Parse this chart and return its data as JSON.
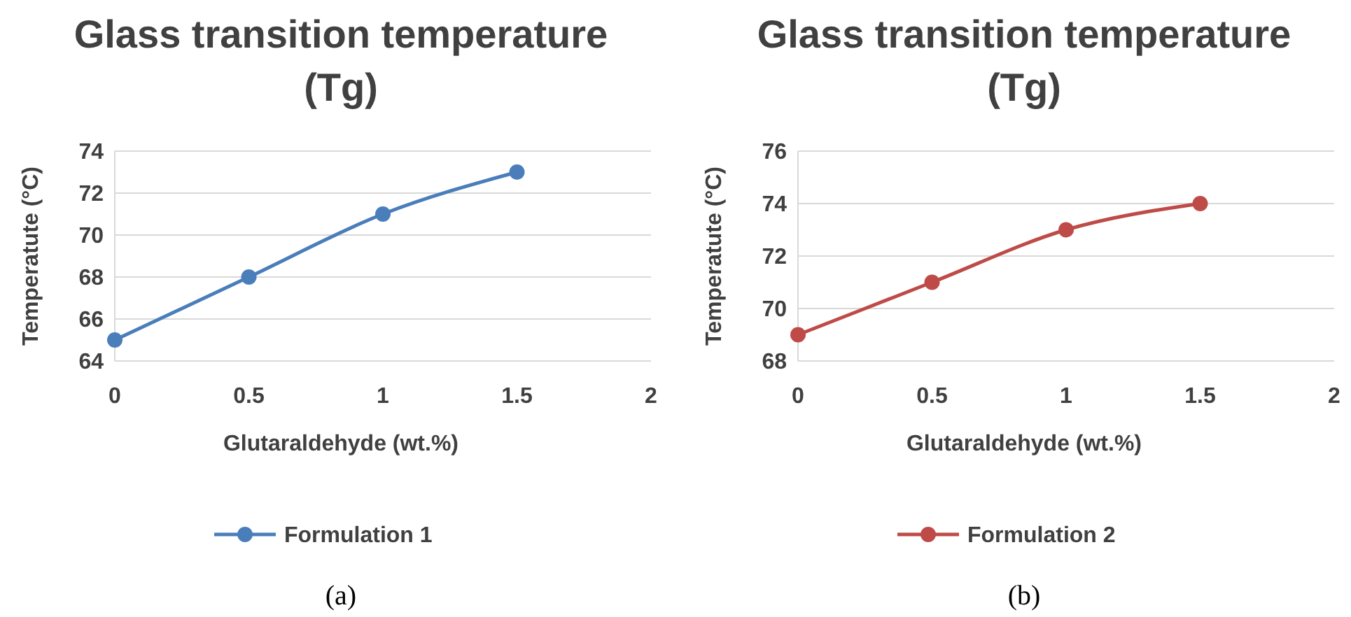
{
  "chart_data": [
    {
      "type": "line",
      "title": "Glass transition temperature (Tg)",
      "xlabel": "Glutaraldehyde (wt.%)",
      "ylabel": "Temperatute (°C)",
      "x": [
        0,
        0.5,
        1,
        1.5
      ],
      "series": [
        {
          "name": "Formulation 1",
          "color": "#4a7ebb",
          "values": [
            65,
            68,
            71,
            73
          ]
        }
      ],
      "xlim": [
        0,
        2
      ],
      "xticks": [
        0,
        0.5,
        1,
        1.5,
        2
      ],
      "ylim": [
        64,
        74
      ],
      "yticks": [
        64,
        66,
        68,
        70,
        72,
        74
      ],
      "grid": "y",
      "legend": "bottom",
      "marker": "circle",
      "line_style": "solid",
      "annotations": [
        "(a)"
      ]
    },
    {
      "type": "line",
      "title": "Glass transition temperature (Tg)",
      "xlabel": "Glutaraldehyde (wt.%)",
      "ylabel": "Temperatute (°C)",
      "x": [
        0,
        0.5,
        1,
        1.5
      ],
      "series": [
        {
          "name": "Formulation 2",
          "color": "#be4b48",
          "values": [
            69,
            71,
            73,
            74
          ]
        }
      ],
      "xlim": [
        0,
        2
      ],
      "xticks": [
        0,
        0.5,
        1,
        1.5,
        2
      ],
      "ylim": [
        68,
        76
      ],
      "yticks": [
        68,
        70,
        72,
        74,
        76
      ],
      "grid": "y",
      "legend": "bottom",
      "marker": "circle",
      "line_style": "solid",
      "annotations": [
        "(b)"
      ]
    }
  ]
}
